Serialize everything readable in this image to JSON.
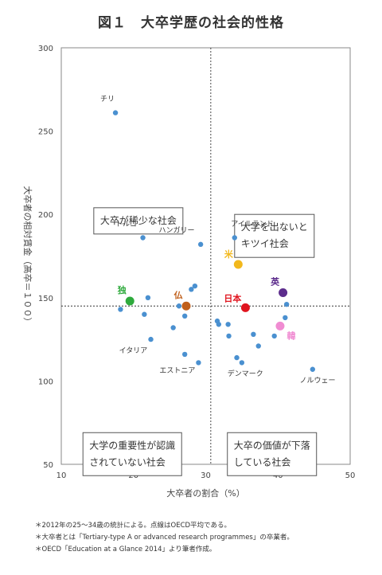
{
  "title": "図１　大卒学歴の社会的性格",
  "chart_data": {
    "type": "scatter",
    "xlabel": "大卒者の割合（%）",
    "ylabel": "大卒者の相対賃金（高卒＝１００）",
    "xlim": [
      10,
      50
    ],
    "ylim": [
      50,
      300
    ],
    "xticks": [
      "10",
      "20",
      "30",
      "40",
      "50"
    ],
    "yticks": [
      "50",
      "100",
      "150",
      "200",
      "250",
      "300"
    ],
    "grid": false,
    "reference_lines": {
      "x": 30.7,
      "y": 145
    },
    "points": [
      {
        "x": 17.5,
        "y": 261
      },
      {
        "x": 21.3,
        "y": 186
      },
      {
        "x": 29.3,
        "y": 182
      },
      {
        "x": 34.0,
        "y": 186
      },
      {
        "x": 28.5,
        "y": 157
      },
      {
        "x": 28.0,
        "y": 155
      },
      {
        "x": 18.2,
        "y": 143
      },
      {
        "x": 22.0,
        "y": 150
      },
      {
        "x": 26.3,
        "y": 145
      },
      {
        "x": 21.5,
        "y": 140
      },
      {
        "x": 27.1,
        "y": 139
      },
      {
        "x": 25.5,
        "y": 132
      },
      {
        "x": 22.4,
        "y": 125
      },
      {
        "x": 27.1,
        "y": 116
      },
      {
        "x": 29.0,
        "y": 111
      },
      {
        "x": 31.6,
        "y": 136
      },
      {
        "x": 31.8,
        "y": 134
      },
      {
        "x": 33.1,
        "y": 134
      },
      {
        "x": 33.2,
        "y": 127
      },
      {
        "x": 34.3,
        "y": 114
      },
      {
        "x": 35.0,
        "y": 111
      },
      {
        "x": 36.6,
        "y": 128
      },
      {
        "x": 37.3,
        "y": 121
      },
      {
        "x": 39.5,
        "y": 127
      },
      {
        "x": 41.0,
        "y": 138
      },
      {
        "x": 41.2,
        "y": 146
      },
      {
        "x": 44.8,
        "y": 107
      }
    ],
    "highlighted": [
      {
        "label": "独",
        "x": 19.5,
        "y": 148,
        "color": "#2eaa3c"
      },
      {
        "label": "仏",
        "x": 27.3,
        "y": 145,
        "color": "#c0601c"
      },
      {
        "label": "日本",
        "x": 35.5,
        "y": 144,
        "color": "#e0141e"
      },
      {
        "label": "米",
        "x": 34.5,
        "y": 170,
        "color": "#f2b81c"
      },
      {
        "label": "英",
        "x": 40.7,
        "y": 153,
        "color": "#5c2c8c"
      },
      {
        "label": "韓",
        "x": 40.3,
        "y": 133,
        "color": "#f08cd2"
      }
    ],
    "point_labels": [
      {
        "text": "チリ",
        "x": 15.4,
        "y": 268
      },
      {
        "text": "トルコ",
        "x": 17.5,
        "y": 193
      },
      {
        "text": "ハンガリー",
        "x": 23.5,
        "y": 189
      },
      {
        "text": "アイルランド",
        "x": 33.5,
        "y": 193
      },
      {
        "text": "イタリア",
        "x": 18.0,
        "y": 117
      },
      {
        "text": "エストニア",
        "x": 23.6,
        "y": 105
      },
      {
        "text": "デンマーク",
        "x": 33.0,
        "y": 103
      },
      {
        "text": "ノルウェー",
        "x": 43.0,
        "y": 99
      }
    ],
    "quadrant_labels": [
      {
        "lines": [
          "大卒が稀少な社会"
        ],
        "x": 14.5,
        "y": 204
      },
      {
        "lines": [
          "大学を出ないと",
          "キツイ社会"
        ],
        "x": 34.0,
        "y": 200
      },
      {
        "lines": [
          "大学の重要性が認識",
          "されていない社会"
        ],
        "x": 13.0,
        "y": 69
      },
      {
        "lines": [
          "大卒の価値が下落",
          "している社会"
        ],
        "x": 33.0,
        "y": 69
      }
    ]
  },
  "notes": [
    "＊2012年の25～34歳の統計による。点線はOECD平均である。",
    "＊大卒者とは「Tertiary-type A or advanced research programmes」の卒業者。",
    "＊OECD「Education at a Glance 2014」より筆者作成。"
  ]
}
